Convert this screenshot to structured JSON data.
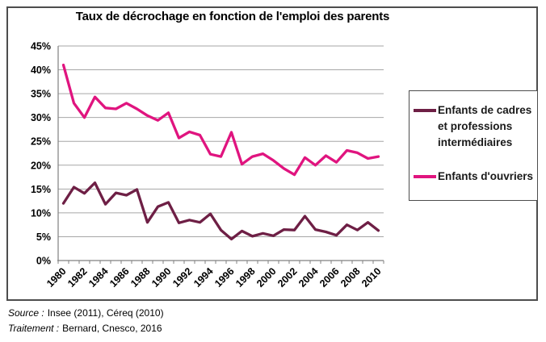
{
  "title": "Taux de décrochage en fonction de l'emploi des parents",
  "footer": {
    "source_label": "Source :",
    "source_value": "Insee (2011), Céreq (2010)",
    "treatment_label": "Traitement :",
    "treatment_value": "Bernard, Cnesco, 2016"
  },
  "colors": {
    "cadres_line": "#6E1F45",
    "ouvriers_line": "#E0147F",
    "grid": "#A6A6A6",
    "axis": "#808080",
    "chart_border": "#4d4d4d"
  },
  "chart_data": {
    "type": "line",
    "title": "Taux de décrochage en fonction de l'emploi des parents",
    "x": [
      1980,
      1981,
      1982,
      1983,
      1984,
      1985,
      1986,
      1987,
      1988,
      1989,
      1990,
      1991,
      1992,
      1993,
      1994,
      1995,
      1996,
      1997,
      1998,
      1999,
      2000,
      2001,
      2002,
      2003,
      2004,
      2005,
      2006,
      2007,
      2008,
      2009,
      2010
    ],
    "series": [
      {
        "name": "Enfants de cadres et professions intermédiaires",
        "color": "#6E1F45",
        "values": [
          12,
          15.4,
          14.1,
          16.3,
          11.8,
          14.2,
          13.7,
          14.9,
          8,
          11.3,
          12.2,
          7.9,
          8.5,
          8,
          9.8,
          6.4,
          4.5,
          6.2,
          5.1,
          5.7,
          5.2,
          6.5,
          6.4,
          9.3,
          6.5,
          6,
          5.3,
          7.5,
          6.4,
          8,
          6.3
        ]
      },
      {
        "name": "Enfants d'ouvriers",
        "color": "#E0147F",
        "values": [
          41,
          33,
          30,
          34.3,
          32,
          31.8,
          33,
          31.8,
          30.4,
          29.4,
          31,
          25.7,
          27,
          26.3,
          22.3,
          21.8,
          26.9,
          20.2,
          21.8,
          22.4,
          21,
          19.3,
          18,
          21.6,
          20,
          22,
          20.6,
          23.1,
          22.6,
          21.4,
          21.8
        ]
      }
    ],
    "xlabel": "",
    "ylabel": "",
    "ylim": [
      0,
      45
    ],
    "ytick_step": 5,
    "ytick_format": "percent",
    "xtick_interval": 2,
    "xtick_rotation": -45,
    "grid": true,
    "grid_color": "#A6A6A6",
    "axis_color": "#808080",
    "legend_position": "right"
  }
}
